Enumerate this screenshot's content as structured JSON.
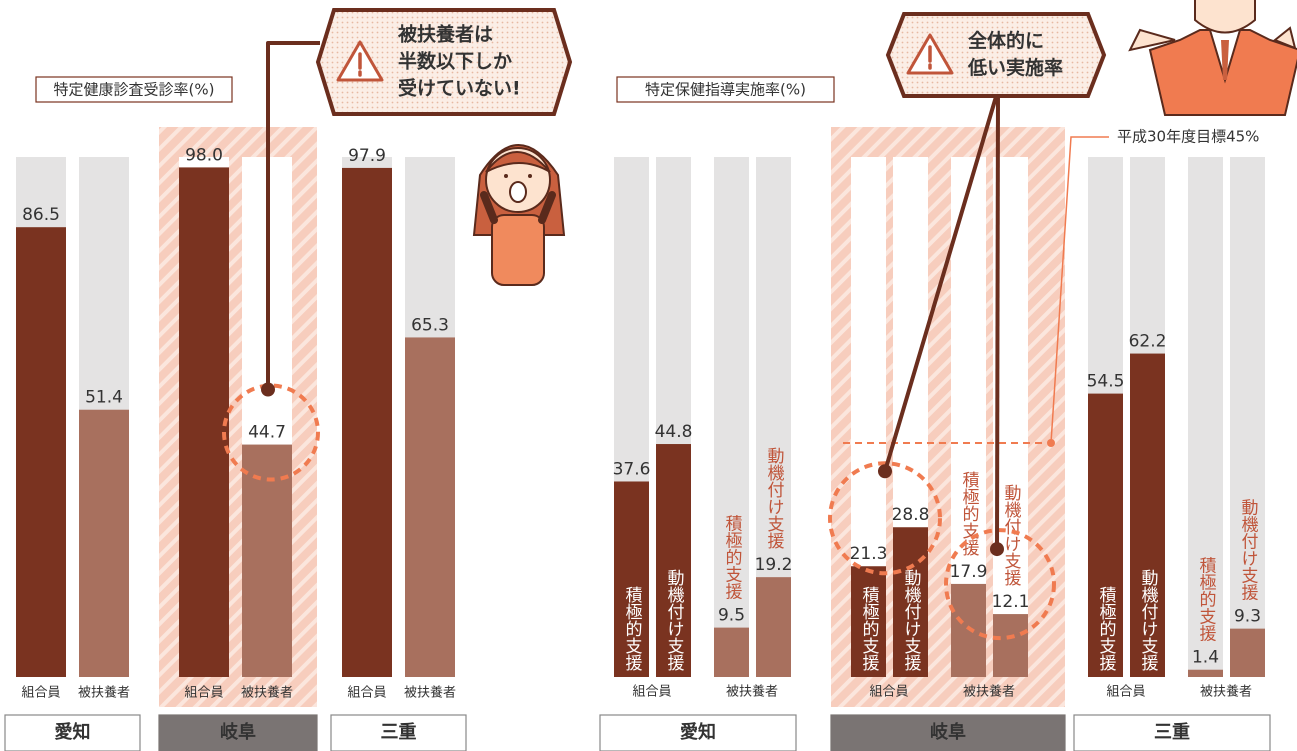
{
  "chart_data": [
    {
      "type": "grouped-bar",
      "title": "特定健康診査受診率(%)",
      "categories": [
        "愛知",
        "岐阜",
        "三重"
      ],
      "series": [
        {
          "name": "組合員",
          "color": "#7a3320",
          "values": [
            86.5,
            98.0,
            97.9
          ],
          "value_labels": [
            "86.5",
            "98.0",
            "97.9"
          ]
        },
        {
          "name": "被扶養者",
          "color": "#a8705e",
          "values": [
            51.4,
            44.7,
            65.3
          ]
        }
      ],
      "ylim": [
        0,
        100
      ],
      "highlight_category": 1,
      "callout": [
        "被扶養者は",
        "半数以下しか",
        "受けていない!"
      ]
    },
    {
      "type": "nested-bar",
      "title": "特定保健指導実施率(%)",
      "categories": [
        "愛知",
        "岐阜",
        "三重"
      ],
      "subgroups": [
        {
          "name": "組合員",
          "color": "#7a3320",
          "label_inside": true,
          "series": [
            {
              "name": "積極的支援",
              "values": [
                37.6,
                21.3,
                54.5
              ]
            },
            {
              "name": "動機付け支援",
              "values": [
                44.8,
                28.8,
                62.2
              ]
            }
          ]
        },
        {
          "name": "被扶養者",
          "color": "#a8705e",
          "label_inside": false,
          "series": [
            {
              "name": "積極的支援",
              "values": [
                9.5,
                17.9,
                1.4
              ]
            },
            {
              "name": "動機付け支援",
              "values": [
                19.2,
                12.1,
                9.3
              ]
            }
          ]
        }
      ],
      "ylim": [
        0,
        100
      ],
      "highlight_category": 1,
      "target": {
        "value": 45,
        "label": "平成30年度目標45%"
      },
      "callout": [
        "全体的に",
        "低い実施率"
      ]
    }
  ]
}
